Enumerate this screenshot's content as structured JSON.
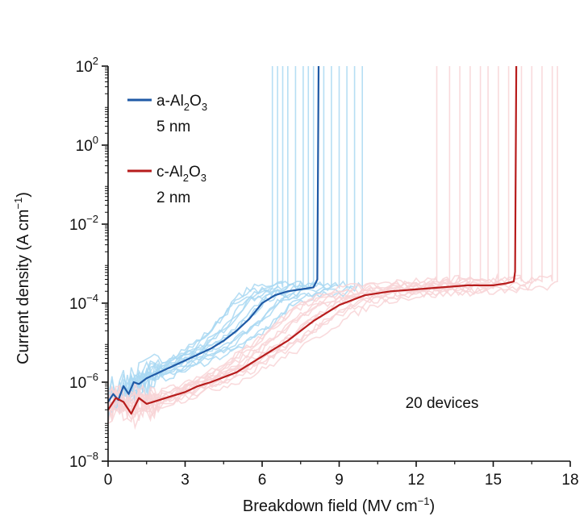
{
  "chart_data": {
    "type": "line",
    "x_label": {
      "text": "Breakdown field (MV cm",
      "sup": "−1",
      "close": ")"
    },
    "y_label": {
      "text": "Current density (A cm",
      "sup": "−1",
      "close": ")"
    },
    "x_ticks": [
      {
        "value": 0,
        "label": "0"
      },
      {
        "value": 3,
        "label": "3"
      },
      {
        "value": 6,
        "label": "6"
      },
      {
        "value": 9,
        "label": "9"
      },
      {
        "value": 12,
        "label": "12"
      },
      {
        "value": 15,
        "label": "15"
      },
      {
        "value": 18,
        "label": "18"
      }
    ],
    "y_ticks": [
      {
        "value": -8,
        "base": "10",
        "exp": "−8"
      },
      {
        "value": -6,
        "base": "10",
        "exp": "−6"
      },
      {
        "value": -4,
        "base": "10",
        "exp": "−4"
      },
      {
        "value": -2,
        "base": "10",
        "exp": "−2"
      },
      {
        "value": 0,
        "base": "10",
        "exp": "0"
      },
      {
        "value": 2,
        "base": "10",
        "exp": "2"
      }
    ],
    "xlim": [
      0,
      18
    ],
    "ylim_log10": [
      -8,
      2
    ],
    "y_scale": "log",
    "grid": false,
    "legend_position": "top-left",
    "annotation": "20 devices",
    "series": [
      {
        "name_parts": [
          "a-Al",
          "2",
          "O",
          "3"
        ],
        "name_line2": "5 nm",
        "color": "#1f5aa6",
        "background_color": "#a9d8f2",
        "x": [
          0.0,
          0.2,
          0.4,
          0.6,
          0.8,
          1.0,
          1.2,
          1.5,
          2.0,
          2.5,
          3.0,
          3.5,
          4.0,
          4.5,
          5.0,
          5.5,
          6.0,
          6.5,
          7.0,
          7.5,
          8.0,
          8.15,
          8.2
        ],
        "y_log10": [
          -6.5,
          -6.3,
          -6.45,
          -6.1,
          -6.3,
          -6.0,
          -6.05,
          -5.9,
          -5.75,
          -5.6,
          -5.45,
          -5.3,
          -5.15,
          -4.95,
          -4.7,
          -4.4,
          -4.0,
          -3.8,
          -3.7,
          -3.65,
          -3.6,
          -3.4,
          2.0
        ],
        "background_breakdown_fields": [
          6.4,
          6.6,
          6.8,
          7.0,
          7.3,
          7.6,
          7.8,
          8.0,
          8.4,
          8.7,
          9.0,
          9.3,
          9.6,
          9.9
        ]
      },
      {
        "name_parts": [
          "c-Al",
          "2",
          "O",
          "3"
        ],
        "name_line2": "2 nm",
        "color": "#b71c1c",
        "background_color": "#f8d3d6",
        "x": [
          0.0,
          0.3,
          0.6,
          0.9,
          1.2,
          1.5,
          2.0,
          2.5,
          3.0,
          3.5,
          4.0,
          5.0,
          6.0,
          7.0,
          8.0,
          9.0,
          10.0,
          11.0,
          12.0,
          13.0,
          14.0,
          15.0,
          15.5,
          15.8,
          15.85,
          15.9
        ],
        "y_log10": [
          -6.7,
          -6.4,
          -6.5,
          -6.8,
          -6.4,
          -6.55,
          -6.45,
          -6.35,
          -6.25,
          -6.1,
          -6.0,
          -5.75,
          -5.35,
          -4.95,
          -4.45,
          -4.05,
          -3.8,
          -3.7,
          -3.65,
          -3.6,
          -3.55,
          -3.55,
          -3.5,
          -3.45,
          -3.2,
          2.0
        ],
        "background_breakdown_fields": [
          12.8,
          13.3,
          13.7,
          14.1,
          14.5,
          14.8,
          15.2,
          15.6,
          16.1,
          16.5,
          16.9,
          17.3,
          17.5
        ]
      }
    ]
  }
}
